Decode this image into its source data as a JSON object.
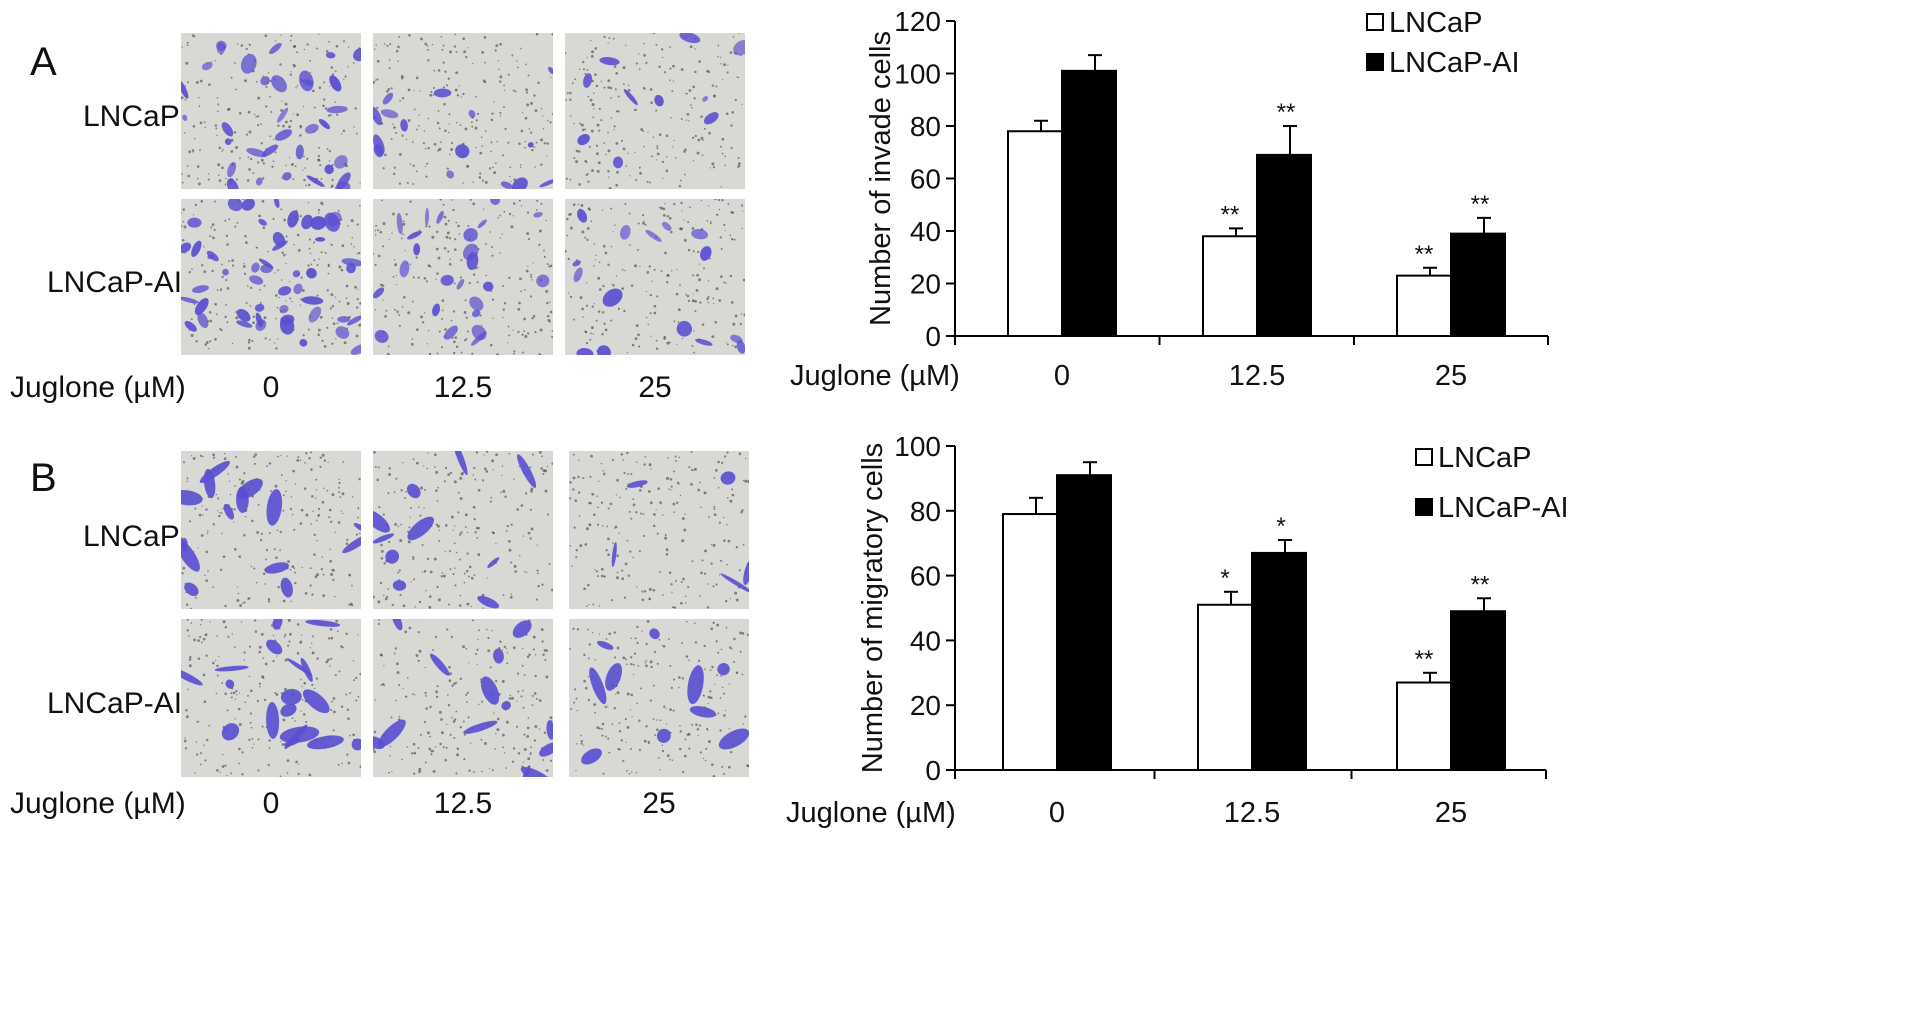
{
  "colors": {
    "open_bar": "#ffffff",
    "filled_bar": "#000000",
    "stain": "#5a4fd0",
    "field": "#d8d8d4"
  },
  "panel_a": {
    "letter": "A",
    "row_labels": [
      "LNCaP",
      "LNCaP-AI"
    ],
    "x_caption": "Juglone (µM)",
    "doses": [
      "0",
      "12.5",
      "25"
    ]
  },
  "panel_b": {
    "letter": "B",
    "row_labels": [
      "LNCaP",
      "LNCaP-AI"
    ],
    "x_caption": "Juglone (µM)",
    "doses": [
      "0",
      "12.5",
      "25"
    ]
  },
  "chart_data": [
    {
      "type": "bar",
      "categories": [
        "0",
        "12.5",
        "25"
      ],
      "xlabel": "Juglone (µM)",
      "ylabel": "Number of invade cells",
      "ylim": [
        0,
        120
      ],
      "yticks": [
        0,
        20,
        40,
        60,
        80,
        100,
        120
      ],
      "grid": false,
      "legend": "top-right",
      "series": [
        {
          "name": "LNCaP",
          "values": [
            78,
            38,
            23
          ],
          "errors": [
            4,
            3,
            3
          ],
          "marks": [
            "",
            "**",
            "**"
          ]
        },
        {
          "name": "LNCaP-AI",
          "values": [
            101,
            69,
            39
          ],
          "errors": [
            6,
            11,
            6
          ],
          "marks": [
            "",
            "**",
            "**"
          ]
        }
      ]
    },
    {
      "type": "bar",
      "categories": [
        "0",
        "12.5",
        "25"
      ],
      "xlabel": "Juglone (µM)",
      "ylabel": "Number of migratory cells",
      "ylim": [
        0,
        100
      ],
      "yticks": [
        0,
        20,
        40,
        60,
        80,
        100
      ],
      "grid": false,
      "legend": "top-right",
      "series": [
        {
          "name": "LNCaP",
          "values": [
            79,
            51,
            27
          ],
          "errors": [
            5,
            4,
            3
          ],
          "marks": [
            "",
            "*",
            "**"
          ]
        },
        {
          "name": "LNCaP-AI",
          "values": [
            91,
            67,
            49
          ],
          "errors": [
            4,
            4,
            4
          ],
          "marks": [
            "",
            "*",
            "**"
          ]
        }
      ]
    }
  ]
}
